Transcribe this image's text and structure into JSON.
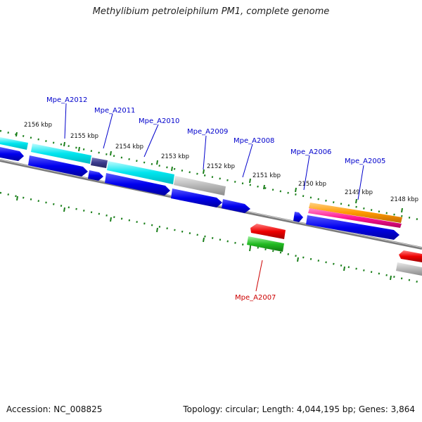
{
  "title": "Methylibium petroleiphilum PM1, complete genome",
  "footer": {
    "accession": "Accession: NC_008825",
    "summary": "Topology: circular; Length: 4,044,195 bp; Genes: 3,864"
  },
  "colors": {
    "cyan": "#00e5ee",
    "blue": "#0000ee",
    "navy": "#3a3a8c",
    "gray": "#b8b8b8",
    "red": "#ee0000",
    "green": "#22bb22",
    "orange": "#ff9900",
    "pink": "#ff1493",
    "tick_green": "#1a7f1a",
    "label_blue": "#0000cc",
    "label_red": "#cc0000",
    "backbone": "#7a7a7a"
  },
  "scale_labels": [
    "2156 kbp",
    "2155 kbp",
    "2154 kbp",
    "2153 kbp",
    "2152 kbp",
    "2151 kbp",
    "2150 kbp",
    "2149 kbp",
    "2148 kbp"
  ],
  "gene_labels": [
    {
      "id": "a2012",
      "text": "Mpe_A2012",
      "color": "label_blue"
    },
    {
      "id": "a2011",
      "text": "Mpe_A2011",
      "color": "label_blue"
    },
    {
      "id": "a2010",
      "text": "Mpe_A2010",
      "color": "label_blue"
    },
    {
      "id": "a2009",
      "text": "Mpe_A2009",
      "color": "label_blue"
    },
    {
      "id": "a2008",
      "text": "Mpe_A2008",
      "color": "label_blue"
    },
    {
      "id": "a2006",
      "text": "Mpe_A2006",
      "color": "label_blue"
    },
    {
      "id": "a2005",
      "text": "Mpe_A2005",
      "color": "label_blue"
    },
    {
      "id": "a2007",
      "text": "Mpe_A2007",
      "color": "label_red"
    }
  ]
}
